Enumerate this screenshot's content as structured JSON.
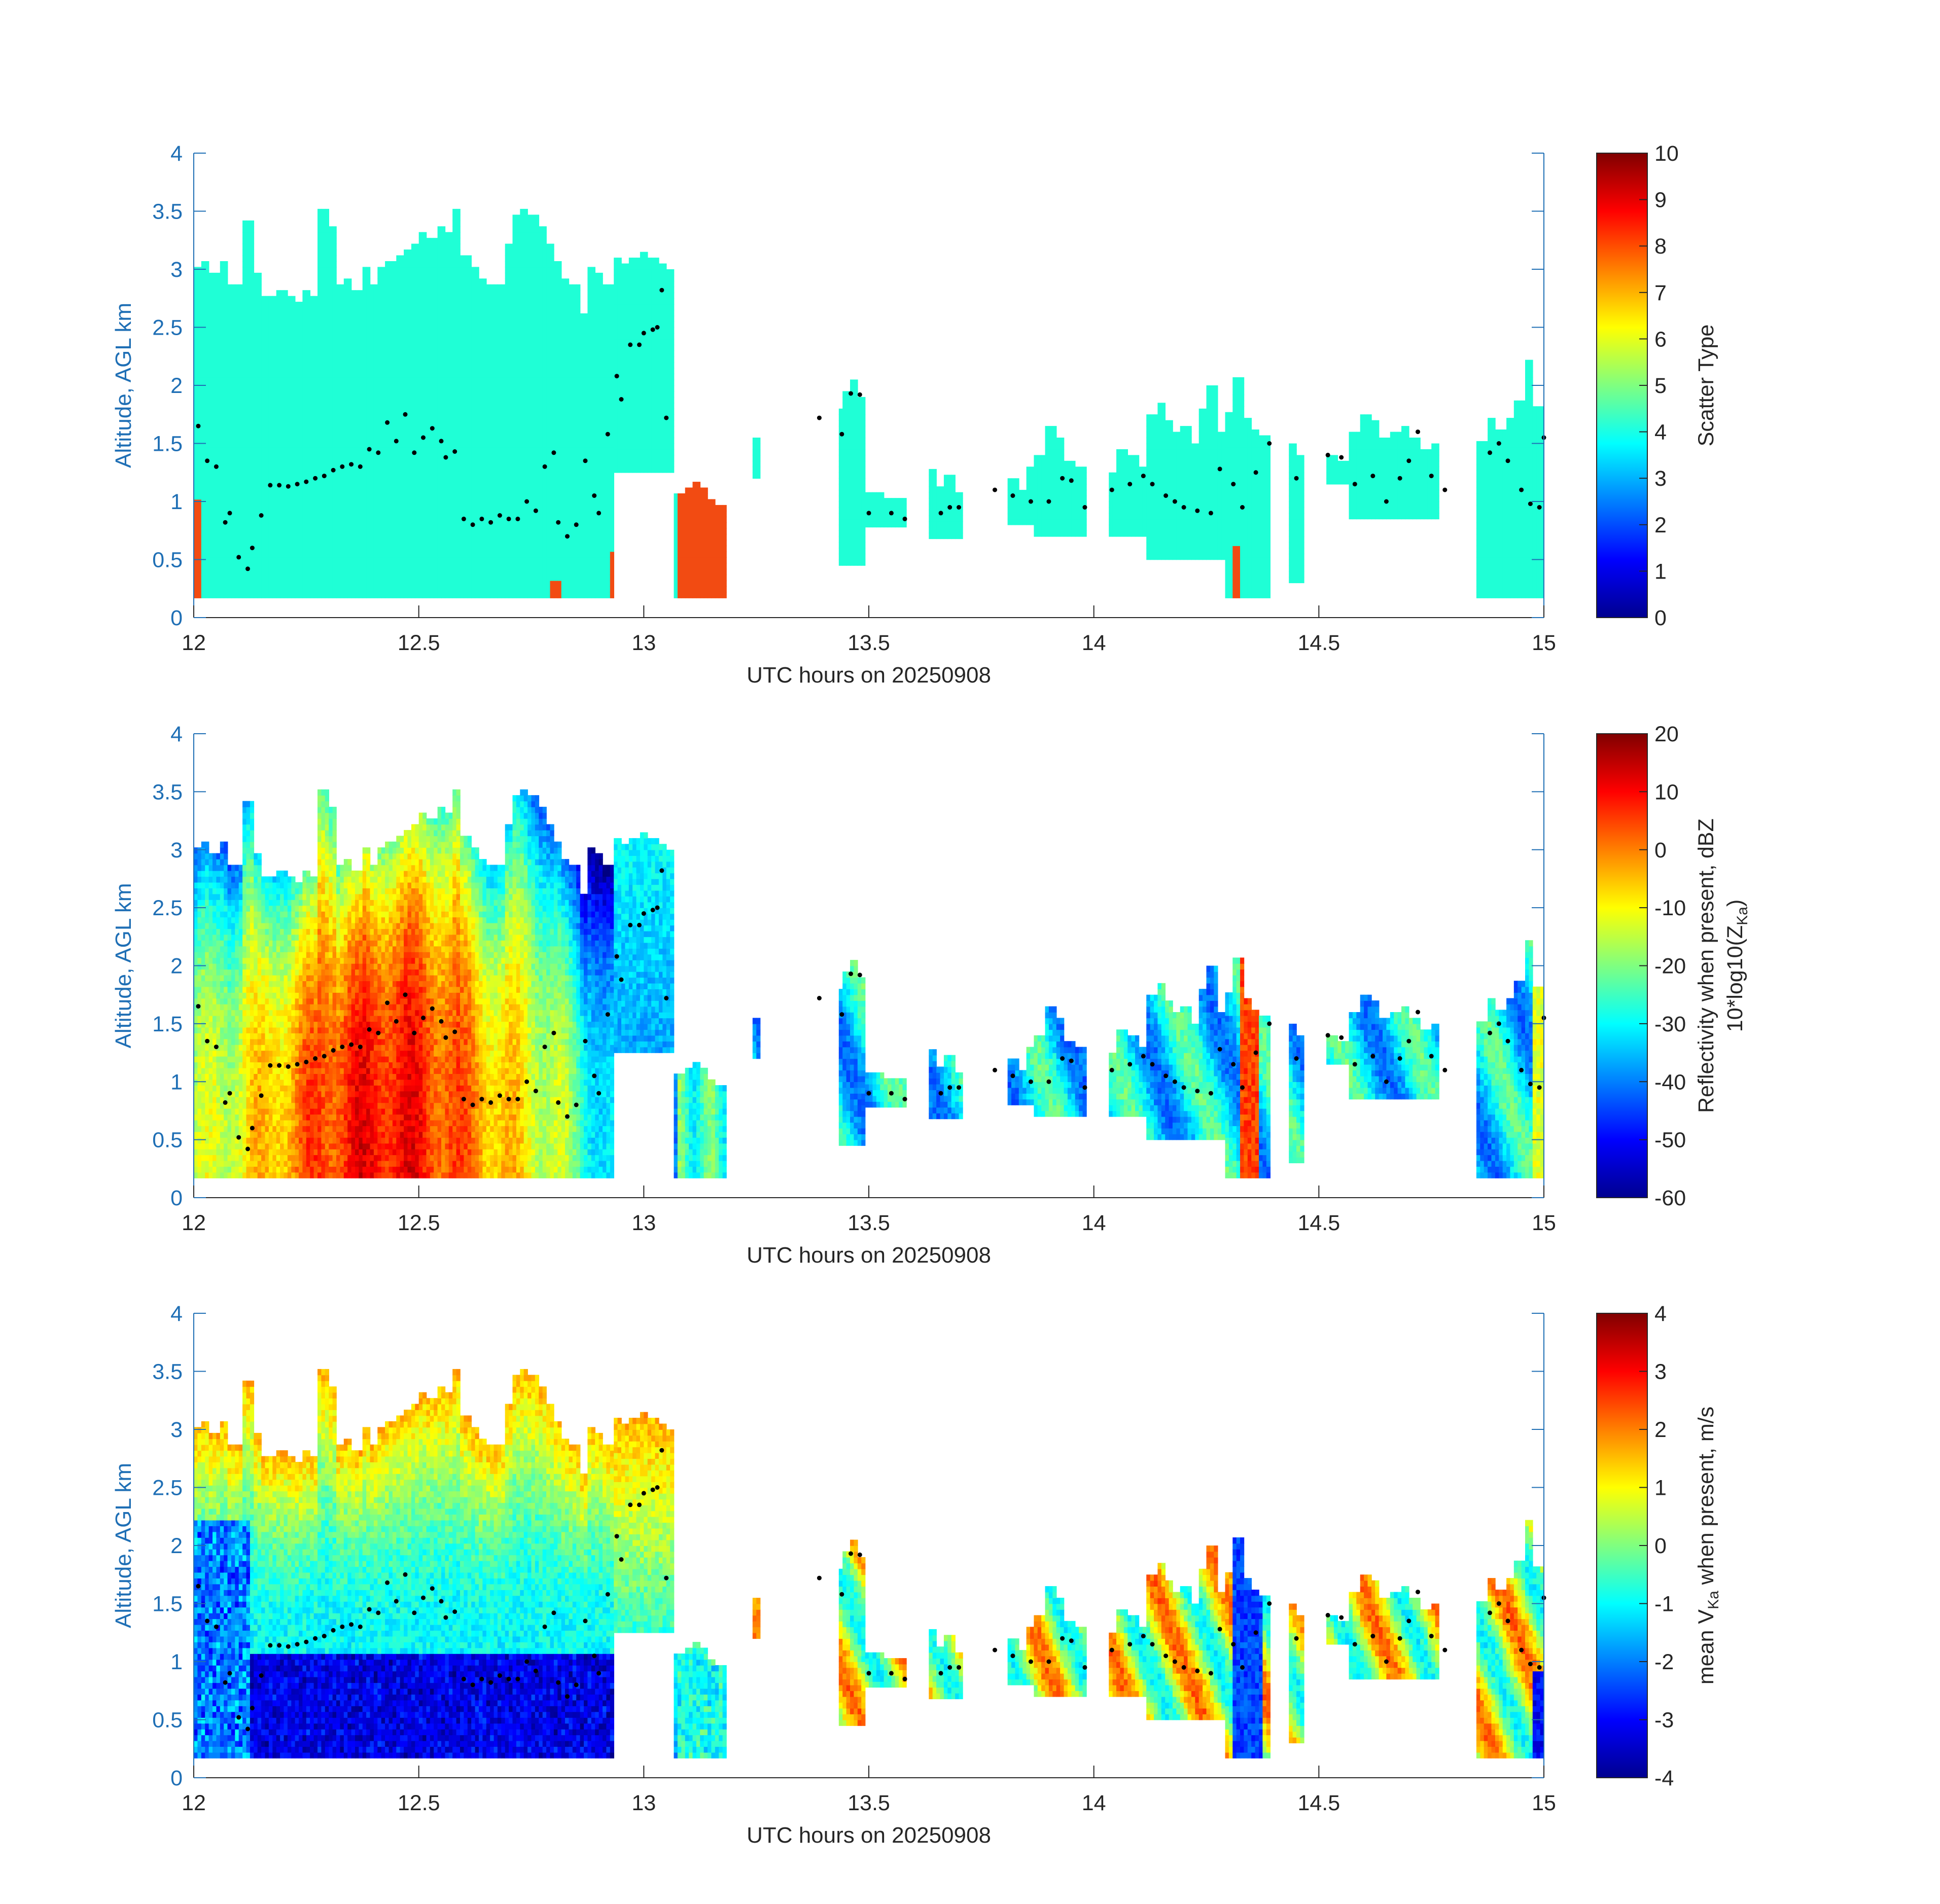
{
  "colors": {
    "axis_blue": "#1f6fb5",
    "axis_black": "#262626",
    "scatter_cloud": "#1fffd6",
    "scatter_precip": "#f24b12",
    "ml_marker": "#000000"
  },
  "colormap": "jet",
  "chart_data": [
    {
      "type": "heatmap",
      "title": "",
      "xlabel": "UTC hours on 20250908",
      "ylabel": "Altitude, AGL km",
      "xlim": [
        12,
        15
      ],
      "ylim": [
        0,
        4
      ],
      "xticks": [
        "12",
        "12.5",
        "13",
        "13.5",
        "14",
        "14.5",
        "15"
      ],
      "yticks": [
        "0",
        "0.5",
        "1",
        "1.5",
        "2",
        "2.5",
        "3",
        "3.5",
        "4"
      ],
      "colorbar": {
        "label": "Scatter Type",
        "range": [
          0,
          10
        ],
        "ticks": [
          "0",
          "1",
          "2",
          "3",
          "4",
          "5",
          "6",
          "7",
          "8",
          "9",
          "10"
        ]
      },
      "field": "scatter_type",
      "categories": [
        {
          "value": 4,
          "note": "dominant value across echoes"
        },
        {
          "value": 8.5,
          "note": "low-level patches near 12.0, 12.8, 12.93 and 13.1–13.17 h"
        }
      ]
    },
    {
      "type": "heatmap",
      "title": "",
      "xlabel": "UTC hours on 20250908",
      "ylabel": "Altitude, AGL km",
      "xlim": [
        12,
        15
      ],
      "ylim": [
        0,
        4
      ],
      "xticks": [
        "12",
        "12.5",
        "13",
        "13.5",
        "14",
        "14.5",
        "15"
      ],
      "yticks": [
        "0",
        "0.5",
        "1",
        "1.5",
        "2",
        "2.5",
        "3",
        "3.5",
        "4"
      ],
      "colorbar": {
        "label_line1": "Reflectivity when present, dBZ",
        "label_line2": "10*log10(Z",
        "label_sub": "Ka",
        "label_end": ")",
        "range": [
          -60,
          20
        ],
        "ticks": [
          "-60",
          "-50",
          "-40",
          "-30",
          "-20",
          "-10",
          "0",
          "10",
          "20"
        ]
      },
      "field": "reflectivity_dBZ",
      "value_range_estimate": [
        -55,
        18
      ]
    },
    {
      "type": "heatmap",
      "title": "",
      "xlabel": "UTC hours on 20250908",
      "ylabel": "Altitude, AGL km",
      "xlim": [
        12,
        15
      ],
      "ylim": [
        0,
        4
      ],
      "xticks": [
        "12",
        "12.5",
        "13",
        "13.5",
        "14",
        "14.5",
        "15"
      ],
      "yticks": [
        "0",
        "0.5",
        "1",
        "1.5",
        "2",
        "2.5",
        "3",
        "3.5",
        "4"
      ],
      "colorbar": {
        "label_pre": "mean V",
        "label_sub": "Ka",
        "label_post": " when present, m/s",
        "range": [
          -4,
          4
        ],
        "ticks": [
          "-4",
          "-3",
          "-2",
          "-1",
          "0",
          "1",
          "2",
          "3",
          "4"
        ]
      },
      "field": "mean_doppler_velocity_ms",
      "value_range_estimate": [
        -4,
        3.6
      ]
    }
  ],
  "echo_columns": [
    {
      "t0": 12.0,
      "t1": 12.93,
      "bottom": 0.17,
      "top": [
        3.0,
        3.05,
        2.95,
        3.05,
        2.85,
        2.85,
        3.4,
        2.95,
        2.75,
        2.75,
        2.8,
        2.75,
        2.7,
        2.8,
        2.75,
        3.5,
        3.35,
        2.85,
        2.9,
        2.8,
        3.0,
        2.85,
        3.0,
        3.05,
        3.1,
        3.15,
        3.2,
        3.3,
        3.25,
        3.35,
        3.3,
        3.5,
        3.1,
        3.0,
        2.9,
        2.85,
        2.85,
        3.2,
        3.45,
        3.5,
        3.45,
        3.35,
        3.2,
        3.05,
        2.9,
        2.85,
        2.6,
        3.0,
        2.95,
        2.85
      ]
    },
    {
      "t0": 12.93,
      "t1": 13.07,
      "bottom": 1.25,
      "top": [
        3.05,
        3.0,
        3.05,
        3.1,
        3.05,
        3.0,
        2.95
      ]
    },
    {
      "t0": 13.07,
      "t1": 13.18,
      "bottom": 0.17,
      "top": [
        1.05,
        1.1,
        1.15,
        1.1,
        1.0,
        0.95
      ]
    },
    {
      "t0": 13.24,
      "t1": 13.26,
      "bottom": 1.2,
      "top": [
        1.55
      ]
    },
    {
      "t0": 13.43,
      "t1": 13.49,
      "bottom": 0.45,
      "top": [
        1.8,
        1.95,
        2.05,
        1.9
      ]
    },
    {
      "t0": 13.49,
      "t1": 13.58,
      "bottom": 0.78,
      "top": [
        1.05,
        1.05,
        1.0,
        1.0
      ]
    },
    {
      "t0": 13.63,
      "t1": 13.71,
      "bottom": 0.68,
      "top": [
        1.25,
        1.1,
        1.2,
        1.05
      ]
    },
    {
      "t0": 13.81,
      "t1": 13.87,
      "bottom": 0.8,
      "top": [
        1.2,
        1.1,
        1.3
      ]
    },
    {
      "t0": 13.87,
      "t1": 13.98,
      "bottom": 0.7,
      "top": [
        1.4,
        1.65,
        1.55,
        1.35,
        1.3
      ]
    },
    {
      "t0": 14.03,
      "t1": 14.12,
      "bottom": 0.7,
      "top": [
        1.25,
        1.45,
        1.4,
        1.3
      ]
    },
    {
      "t0": 14.12,
      "t1": 14.29,
      "bottom": 0.5,
      "top": [
        1.75,
        1.85,
        1.7,
        1.6,
        1.65,
        1.5,
        1.8,
        2.0,
        1.6
      ]
    },
    {
      "t0": 14.29,
      "t1": 14.39,
      "bottom": 0.17,
      "top": [
        1.75,
        2.05,
        1.7,
        1.6,
        1.55
      ]
    },
    {
      "t0": 14.43,
      "t1": 14.47,
      "bottom": 0.3,
      "top": [
        1.5,
        1.4
      ]
    },
    {
      "t0": 14.52,
      "t1": 14.57,
      "bottom": 1.15,
      "top": [
        1.4,
        1.35
      ]
    },
    {
      "t0": 14.57,
      "t1": 14.77,
      "bottom": 0.85,
      "top": [
        1.6,
        1.75,
        1.7,
        1.55,
        1.6,
        1.65,
        1.55,
        1.45,
        1.5
      ]
    },
    {
      "t0": 14.85,
      "t1": 15.0,
      "bottom": 0.17,
      "top": [
        1.5,
        1.7,
        1.6,
        1.7,
        1.85,
        2.2,
        1.8
      ]
    }
  ],
  "melting_layer_points": [
    [
      12.01,
      1.65
    ],
    [
      12.03,
      1.35
    ],
    [
      12.05,
      1.3
    ],
    [
      12.07,
      0.82
    ],
    [
      12.08,
      0.9
    ],
    [
      12.1,
      0.52
    ],
    [
      12.12,
      0.42
    ],
    [
      12.13,
      0.6
    ],
    [
      12.15,
      0.88
    ],
    [
      12.17,
      1.14
    ],
    [
      12.19,
      1.14
    ],
    [
      12.21,
      1.13
    ],
    [
      12.23,
      1.15
    ],
    [
      12.25,
      1.17
    ],
    [
      12.27,
      1.2
    ],
    [
      12.29,
      1.22
    ],
    [
      12.31,
      1.27
    ],
    [
      12.33,
      1.3
    ],
    [
      12.35,
      1.32
    ],
    [
      12.37,
      1.3
    ],
    [
      12.39,
      1.45
    ],
    [
      12.41,
      1.42
    ],
    [
      12.43,
      1.68
    ],
    [
      12.45,
      1.52
    ],
    [
      12.47,
      1.75
    ],
    [
      12.49,
      1.42
    ],
    [
      12.51,
      1.55
    ],
    [
      12.53,
      1.63
    ],
    [
      12.55,
      1.52
    ],
    [
      12.56,
      1.38
    ],
    [
      12.58,
      1.43
    ],
    [
      12.6,
      0.85
    ],
    [
      12.62,
      0.8
    ],
    [
      12.64,
      0.85
    ],
    [
      12.66,
      0.82
    ],
    [
      12.68,
      0.88
    ],
    [
      12.7,
      0.85
    ],
    [
      12.72,
      0.85
    ],
    [
      12.74,
      1.0
    ],
    [
      12.76,
      0.92
    ],
    [
      12.78,
      1.3
    ],
    [
      12.8,
      1.42
    ],
    [
      12.81,
      0.82
    ],
    [
      12.83,
      0.7
    ],
    [
      12.85,
      0.8
    ],
    [
      12.87,
      1.35
    ],
    [
      12.89,
      1.05
    ],
    [
      12.9,
      0.9
    ],
    [
      12.92,
      1.58
    ],
    [
      12.94,
      2.08
    ],
    [
      12.95,
      1.88
    ],
    [
      12.97,
      2.35
    ],
    [
      12.99,
      2.35
    ],
    [
      13.0,
      2.45
    ],
    [
      13.02,
      2.48
    ],
    [
      13.03,
      2.5
    ],
    [
      13.04,
      2.82
    ],
    [
      13.05,
      1.72
    ],
    [
      13.39,
      1.72
    ],
    [
      13.44,
      1.58
    ],
    [
      13.46,
      1.93
    ],
    [
      13.48,
      1.92
    ],
    [
      13.5,
      0.9
    ],
    [
      13.55,
      0.9
    ],
    [
      13.58,
      0.85
    ],
    [
      13.66,
      0.9
    ],
    [
      13.68,
      0.95
    ],
    [
      13.7,
      0.95
    ],
    [
      13.78,
      1.1
    ],
    [
      13.82,
      1.05
    ],
    [
      13.86,
      1.0
    ],
    [
      13.9,
      1.0
    ],
    [
      13.93,
      1.2
    ],
    [
      13.95,
      1.18
    ],
    [
      13.98,
      0.95
    ],
    [
      14.04,
      1.1
    ],
    [
      14.08,
      1.15
    ],
    [
      14.11,
      1.22
    ],
    [
      14.13,
      1.15
    ],
    [
      14.16,
      1.05
    ],
    [
      14.18,
      1.0
    ],
    [
      14.2,
      0.95
    ],
    [
      14.23,
      0.92
    ],
    [
      14.26,
      0.9
    ],
    [
      14.28,
      1.28
    ],
    [
      14.31,
      1.15
    ],
    [
      14.33,
      0.95
    ],
    [
      14.36,
      1.25
    ],
    [
      14.39,
      1.5
    ],
    [
      14.45,
      1.2
    ],
    [
      14.52,
      1.4
    ],
    [
      14.55,
      1.38
    ],
    [
      14.58,
      1.15
    ],
    [
      14.62,
      1.22
    ],
    [
      14.65,
      1.0
    ],
    [
      14.68,
      1.2
    ],
    [
      14.7,
      1.35
    ],
    [
      14.72,
      1.6
    ],
    [
      14.75,
      1.22
    ],
    [
      14.78,
      1.1
    ],
    [
      14.88,
      1.42
    ],
    [
      14.9,
      1.5
    ],
    [
      14.92,
      1.35
    ],
    [
      14.95,
      1.1
    ],
    [
      14.97,
      0.98
    ],
    [
      14.99,
      0.95
    ],
    [
      15.0,
      1.55
    ]
  ]
}
